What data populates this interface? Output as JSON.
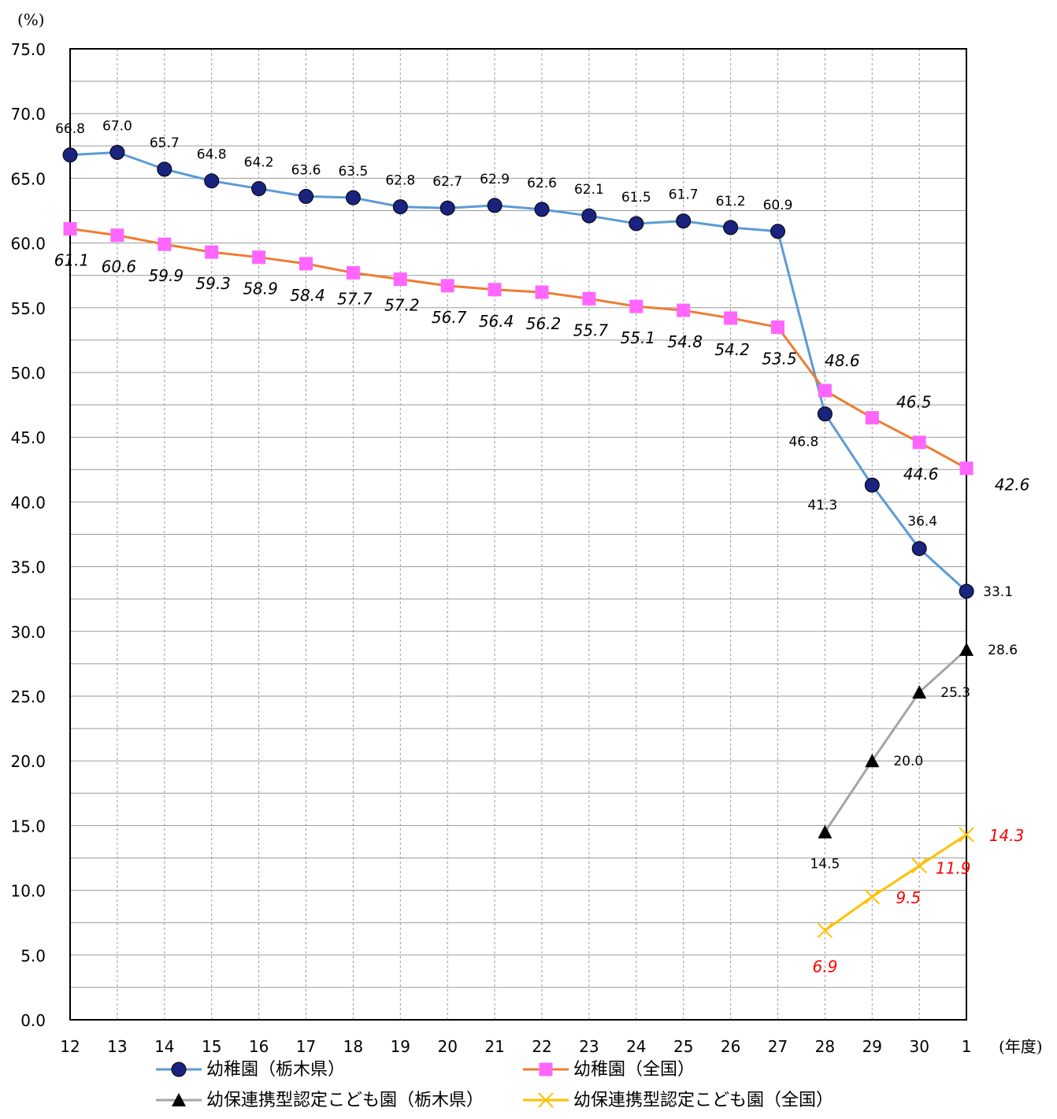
{
  "chart_data": {
    "type": "line",
    "y_unit": "(%)",
    "x_unit": "(年度)",
    "ylim": [
      0,
      75
    ],
    "yticks": [
      "0.0",
      "5.0",
      "10.0",
      "15.0",
      "20.0",
      "25.0",
      "30.0",
      "35.0",
      "40.0",
      "45.0",
      "50.0",
      "55.0",
      "60.0",
      "65.0",
      "70.0",
      "75.0"
    ],
    "categories": [
      "12",
      "13",
      "14",
      "15",
      "16",
      "17",
      "18",
      "19",
      "20",
      "21",
      "22",
      "23",
      "24",
      "25",
      "26",
      "27",
      "28",
      "29",
      "30",
      "1"
    ],
    "grid": true,
    "legend_position": "bottom",
    "series": [
      {
        "name": "幼稚園（栃木県）",
        "color": "#5b9bd5",
        "marker": "circle",
        "marker_color": "#1a237e",
        "values": [
          66.8,
          67.0,
          65.7,
          64.8,
          64.2,
          63.6,
          63.5,
          62.8,
          62.7,
          62.9,
          62.6,
          62.1,
          61.5,
          61.7,
          61.2,
          60.9,
          46.8,
          41.3,
          36.4,
          33.1
        ],
        "labels": [
          "66.8",
          "67.0",
          "65.7",
          "64.8",
          "64.2",
          "63.6",
          "63.5",
          "62.8",
          "62.7",
          "62.9",
          "62.6",
          "62.1",
          "61.5",
          "61.7",
          "61.2",
          "60.9",
          "46.8",
          "41.3",
          "36.4",
          "33.1"
        ]
      },
      {
        "name": "幼稚園（全国）",
        "color": "#ed7d31",
        "marker": "square",
        "marker_color": "#ff66ff",
        "values": [
          61.1,
          60.6,
          59.9,
          59.3,
          58.9,
          58.4,
          57.7,
          57.2,
          56.7,
          56.4,
          56.2,
          55.7,
          55.1,
          54.8,
          54.2,
          53.5,
          48.6,
          46.5,
          44.6,
          42.6
        ],
        "labels": [
          "61.1",
          "60.6",
          "59.9",
          "59.3",
          "58.9",
          "58.4",
          "57.7",
          "57.2",
          "56.7",
          "56.4",
          "56.2",
          "55.7",
          "55.1",
          "54.8",
          "54.2",
          "53.5",
          "48.6",
          "46.5",
          "44.6",
          "42.6"
        ]
      },
      {
        "name": "幼保連携型認定こども園（栃木県）",
        "color": "#a5a5a5",
        "marker": "triangle",
        "marker_color": "#000000",
        "values": [
          null,
          null,
          null,
          null,
          null,
          null,
          null,
          null,
          null,
          null,
          null,
          null,
          null,
          null,
          null,
          null,
          14.5,
          20.0,
          25.3,
          28.6
        ],
        "labels": [
          "",
          "",
          "",
          "",
          "",
          "",
          "",
          "",
          "",
          "",
          "",
          "",
          "",
          "",
          "",
          "",
          "14.5",
          "20.0",
          "25.3",
          "28.6"
        ]
      },
      {
        "name": "幼保連携型認定こども園（全国）",
        "color": "#ffc000",
        "marker": "x",
        "marker_color": "#ffc000",
        "values": [
          null,
          null,
          null,
          null,
          null,
          null,
          null,
          null,
          null,
          null,
          null,
          null,
          null,
          null,
          null,
          null,
          6.9,
          9.5,
          11.9,
          14.3
        ],
        "labels": [
          "",
          "",
          "",
          "",
          "",
          "",
          "",
          "",
          "",
          "",
          "",
          "",
          "",
          "",
          "",
          "",
          "6.9",
          "9.5",
          "11.9",
          "14.3"
        ]
      }
    ]
  }
}
